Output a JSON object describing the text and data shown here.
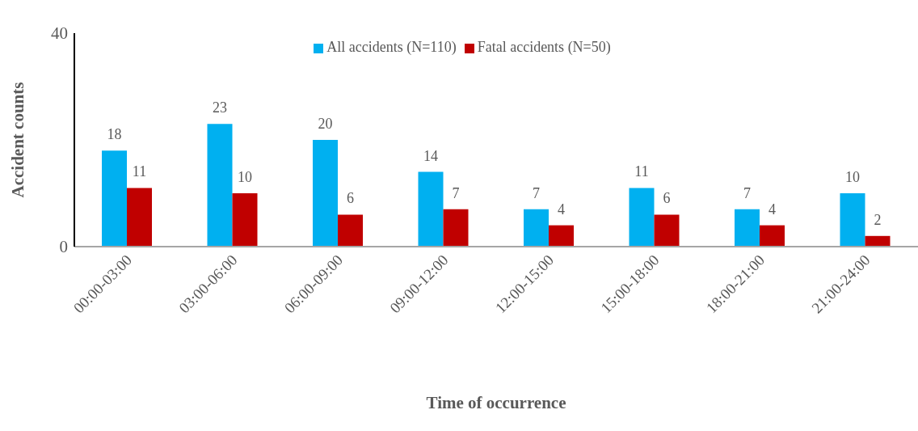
{
  "chart_data": {
    "type": "bar",
    "xlabel": "Time of occurrence",
    "ylabel": "Accident counts",
    "categories": [
      "00:00-03:00",
      "03:00-06:00",
      "06:00-09:00",
      "09:00-12:00",
      "12:00-15:00",
      "15:00-18:00",
      "18:00-21:00",
      "21:00-24:00"
    ],
    "series": [
      {
        "name": "All accidents (N=110)",
        "color": "#00b0f0",
        "values": [
          18,
          23,
          20,
          14,
          7,
          11,
          7,
          10
        ]
      },
      {
        "name": "Fatal accidents (N=50)",
        "color": "#c00000",
        "values": [
          11,
          10,
          6,
          7,
          4,
          6,
          4,
          2
        ]
      }
    ],
    "ylim": [
      0,
      40
    ],
    "yticks": [
      0,
      40
    ],
    "grid": false,
    "legend": "top",
    "data_labels": true
  }
}
